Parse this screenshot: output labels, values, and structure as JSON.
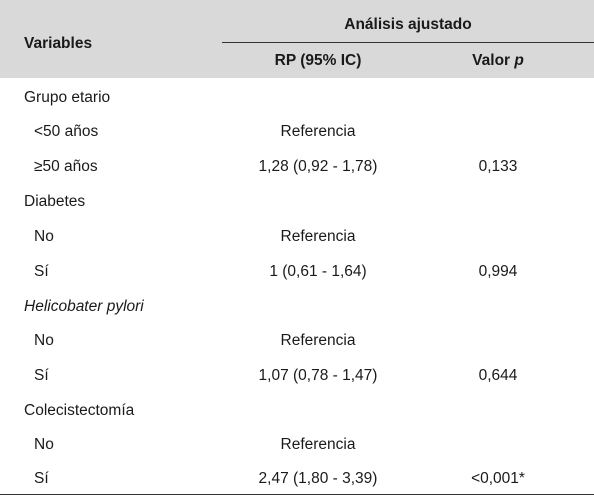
{
  "header": {
    "variables": "Variables",
    "group": "Análisis ajustado",
    "rp": "RP (95% IC)",
    "valor_prefix": "Valor ",
    "valor_p": "p"
  },
  "rows": [
    {
      "label": "Grupo etario",
      "rp": "",
      "p": ""
    },
    {
      "label": "<50 años",
      "rp": "Referencia",
      "p": ""
    },
    {
      "label": "≥50 años",
      "rp": "1,28 (0,92 - 1,78)",
      "p": "0,133"
    },
    {
      "label": "Diabetes",
      "rp": "",
      "p": ""
    },
    {
      "label": "No",
      "rp": "Referencia",
      "p": ""
    },
    {
      "label": "Sí",
      "rp": "1 (0,61 - 1,64)",
      "p": "0,994"
    },
    {
      "label": "Helicobater pylori",
      "rp": "",
      "p": ""
    },
    {
      "label": "No",
      "rp": "Referencia",
      "p": ""
    },
    {
      "label": "Sí",
      "rp": "1,07 (0,78 - 1,47)",
      "p": "0,644"
    },
    {
      "label": "Colecistectomía",
      "rp": "",
      "p": ""
    },
    {
      "label": "No",
      "rp": "Referencia",
      "p": ""
    },
    {
      "label": "Sí",
      "rp": "2,47 (1,80 - 3,39)",
      "p": "<0,001*"
    }
  ]
}
